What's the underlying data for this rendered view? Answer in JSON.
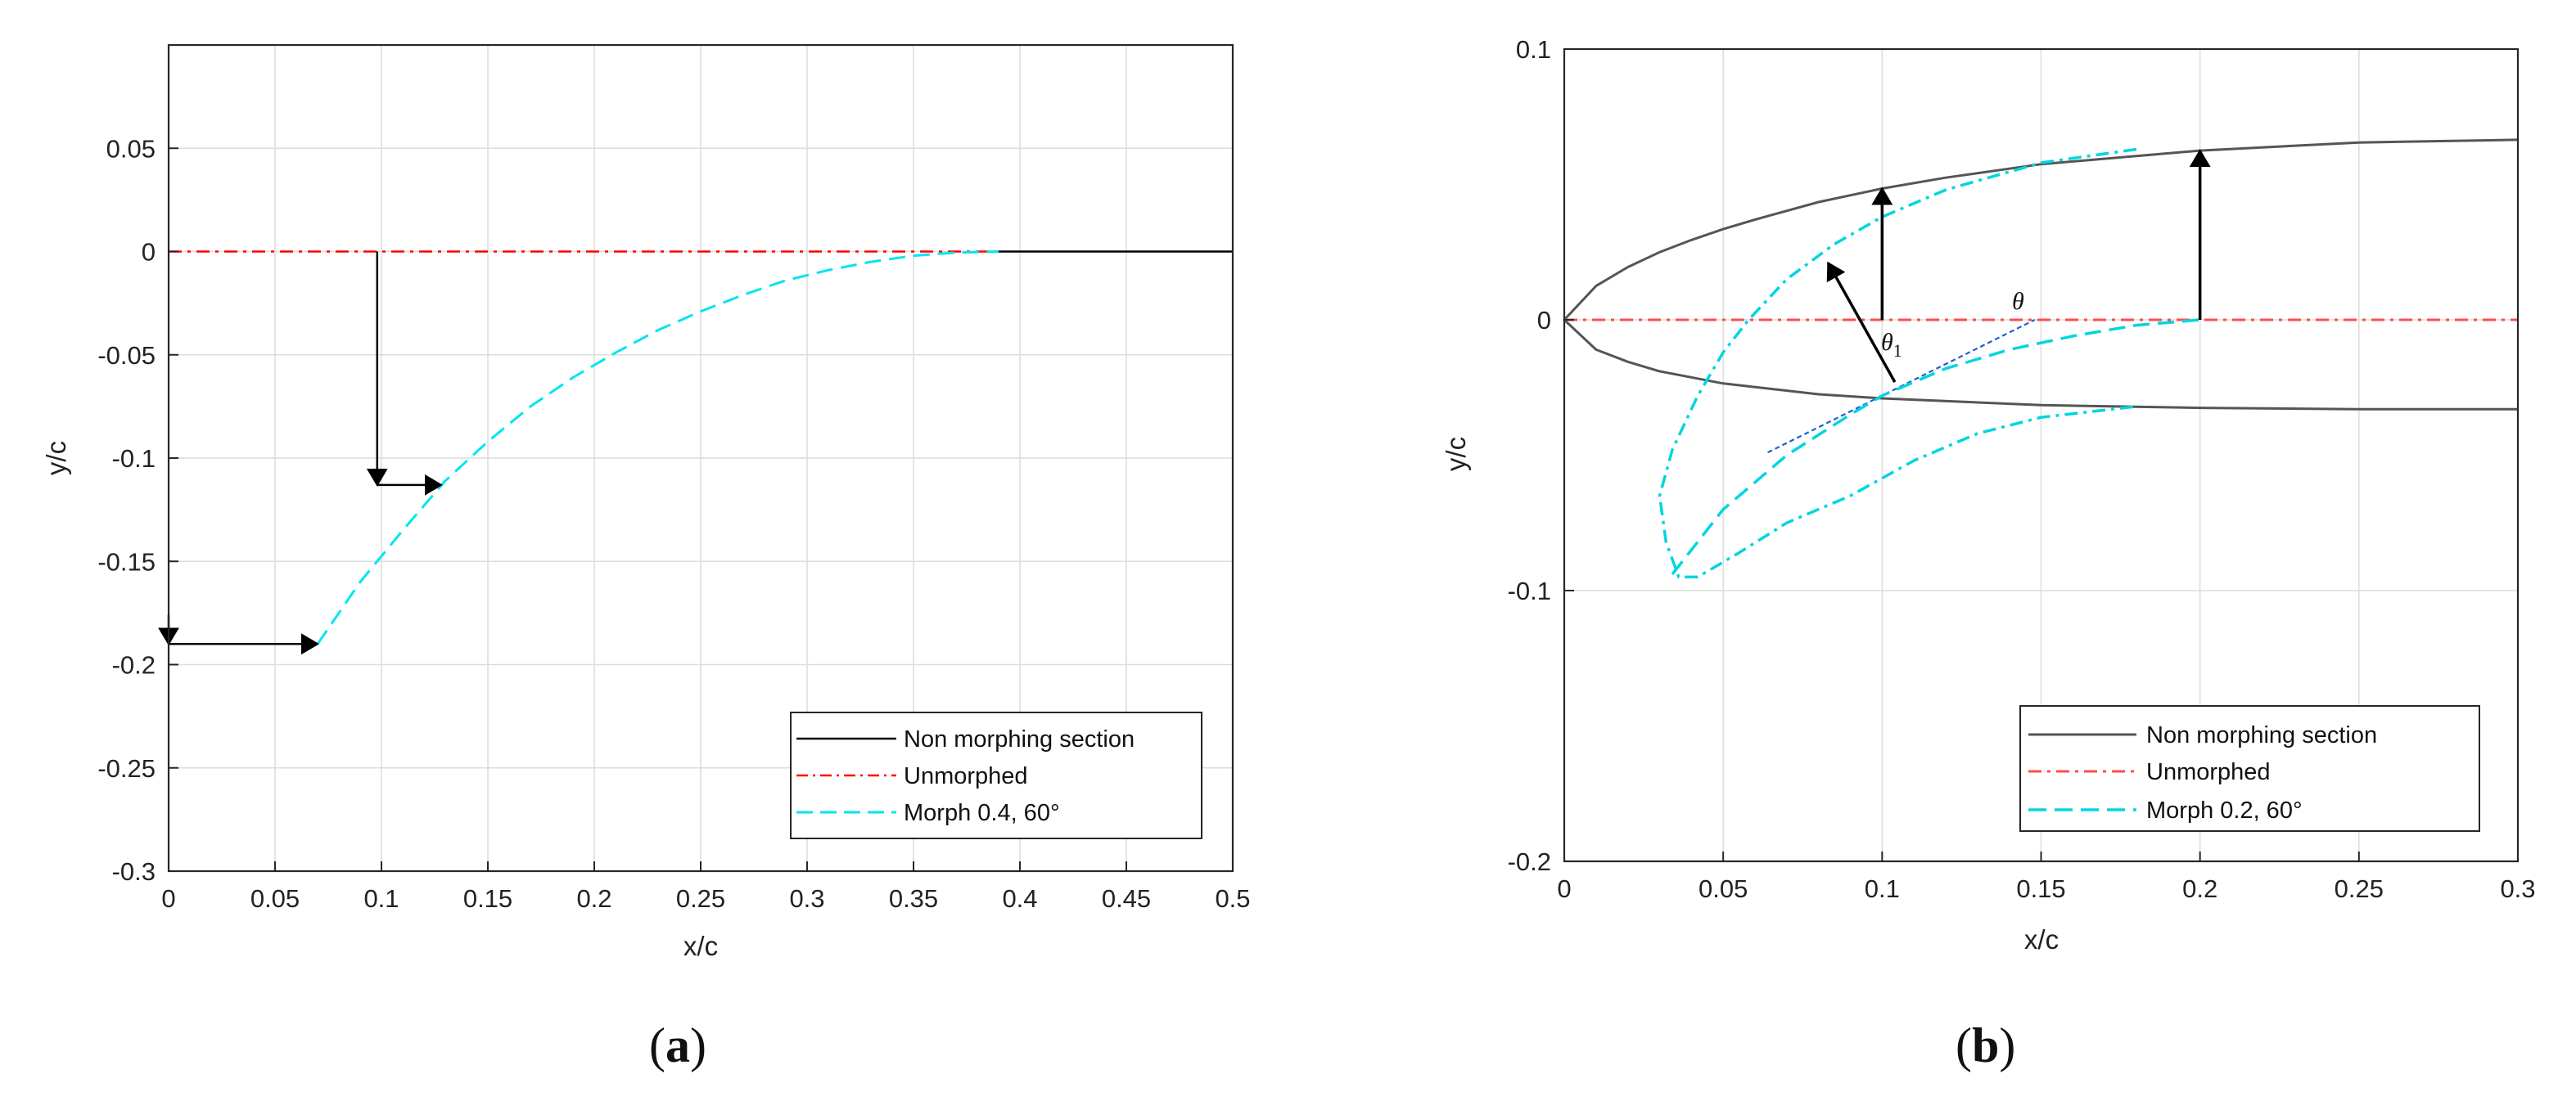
{
  "chart_data": [
    {
      "type": "line",
      "panel_label": "a",
      "xlabel": "x/c",
      "ylabel": "y/c",
      "xlim": [
        0,
        0.5
      ],
      "ylim": [
        -0.3,
        0.1
      ],
      "xticks": [
        "0",
        "0.05",
        "0.1",
        "0.15",
        "0.2",
        "0.25",
        "0.3",
        "0.35",
        "0.4",
        "0.45",
        "0.5"
      ],
      "yticks": [
        "0.05",
        "0",
        "-0.05",
        "-0.1",
        "-0.15",
        "-0.2",
        "-0.25",
        "-0.3"
      ],
      "grid": true,
      "legend_position": "bottom-right",
      "series": [
        {
          "name": "Non morphing section",
          "color": "#000000",
          "style": "solid",
          "x": [
            0.39,
            0.5
          ],
          "y": [
            0,
            0
          ]
        },
        {
          "name": "Unmorphed",
          "color": "#ff0000",
          "style": "dashdot",
          "x": [
            0,
            0.39
          ],
          "y": [
            0,
            0
          ]
        },
        {
          "name": "Morph 0.4, 60°",
          "color": "#00e5ee",
          "style": "dashed",
          "x": [
            0.07,
            0.09,
            0.11,
            0.13,
            0.15,
            0.17,
            0.19,
            0.21,
            0.23,
            0.25,
            0.27,
            0.29,
            0.31,
            0.33,
            0.35,
            0.37,
            0.39
          ],
          "y": [
            -0.19,
            -0.16,
            -0.135,
            -0.111,
            -0.092,
            -0.075,
            -0.061,
            -0.049,
            -0.038,
            -0.029,
            -0.021,
            -0.014,
            -0.009,
            -0.005,
            -0.002,
            -0.0005,
            0
          ]
        }
      ],
      "arrows": [
        {
          "from": [
            0.098,
            0
          ],
          "to": [
            0.098,
            -0.113
          ]
        },
        {
          "from": [
            0.098,
            -0.113
          ],
          "to": [
            0.128,
            -0.113
          ]
        },
        {
          "from": [
            0,
            -0.19
          ],
          "to": [
            0.07,
            -0.19
          ]
        },
        {
          "from": [
            0,
            -0.176
          ],
          "to": [
            0,
            -0.19
          ]
        }
      ]
    },
    {
      "type": "line",
      "panel_label": "b",
      "xlabel": "x/c",
      "ylabel": "y/c",
      "xlim": [
        0,
        0.3
      ],
      "ylim": [
        -0.2,
        0.1
      ],
      "xticks": [
        "0",
        "0.05",
        "0.1",
        "0.15",
        "0.2",
        "0.25",
        "0.3"
      ],
      "yticks": [
        "0.1",
        "0",
        "-0.1",
        "-0.2"
      ],
      "grid": true,
      "legend_position": "bottom-right",
      "series": [
        {
          "name": "Non morphing section",
          "color": "#555555",
          "style": "solid",
          "upper": {
            "x": [
              0,
              0.01,
              0.02,
              0.03,
              0.04,
              0.05,
              0.06,
              0.08,
              0.1,
              0.12,
              0.15,
              0.2,
              0.25,
              0.3
            ],
            "y": [
              0,
              0.0125,
              0.0195,
              0.025,
              0.0295,
              0.0335,
              0.037,
              0.0435,
              0.0485,
              0.0525,
              0.0575,
              0.0625,
              0.0655,
              0.0665
            ]
          },
          "lower": {
            "x": [
              0,
              0.01,
              0.02,
              0.03,
              0.05,
              0.08,
              0.1,
              0.15,
              0.2,
              0.25,
              0.3
            ],
            "y": [
              0,
              -0.011,
              -0.0155,
              -0.019,
              -0.0235,
              -0.0275,
              -0.029,
              -0.0315,
              -0.0325,
              -0.033,
              -0.033
            ]
          }
        },
        {
          "name": "Unmorphed",
          "color": "#ff4d4d",
          "style": "dashdot",
          "x": [
            0,
            0.3
          ],
          "y": [
            0,
            0
          ]
        },
        {
          "name": "Morph 0.2, 60°",
          "color": "#00d5e0",
          "style": "dashdot",
          "x": [
            0.18,
            0.15,
            0.12,
            0.1,
            0.085,
            0.07,
            0.058,
            0.05,
            0.042,
            0.034,
            0.03,
            0.032,
            0.036,
            0.042,
            0.055,
            0.07,
            0.09,
            0.11,
            0.13,
            0.15,
            0.18
          ],
          "y": [
            0.063,
            0.058,
            0.048,
            0.038,
            0.028,
            0.015,
            0.0,
            -0.012,
            -0.028,
            -0.048,
            -0.065,
            -0.082,
            -0.095,
            -0.095,
            -0.086,
            -0.075,
            -0.065,
            -0.052,
            -0.042,
            -0.036,
            -0.032
          ]
        },
        {
          "name": "",
          "color": "#00d5e0",
          "style": "dashed",
          "x": [
            0.034,
            0.04,
            0.05,
            0.07,
            0.09,
            0.1,
            0.12,
            0.14,
            0.16,
            0.18,
            0.2
          ],
          "y": [
            -0.094,
            -0.085,
            -0.07,
            -0.05,
            -0.035,
            -0.028,
            -0.018,
            -0.011,
            -0.006,
            -0.002,
            0
          ]
        }
      ],
      "arrows": [
        {
          "from": [
            0.1,
            0
          ],
          "to": [
            0.1,
            0.0485
          ]
        },
        {
          "from": [
            0.2,
            0
          ],
          "to": [
            0.2,
            0.0625
          ]
        },
        {
          "from": [
            0.104,
            -0.023
          ],
          "to": [
            0.083,
            0.021
          ]
        }
      ],
      "annotations": [
        "θ",
        "θ1"
      ],
      "tangent_line": {
        "from": [
          0.064,
          -0.049
        ],
        "to": [
          0.148,
          0.0
        ],
        "color": "#1f5fd0"
      }
    }
  ]
}
